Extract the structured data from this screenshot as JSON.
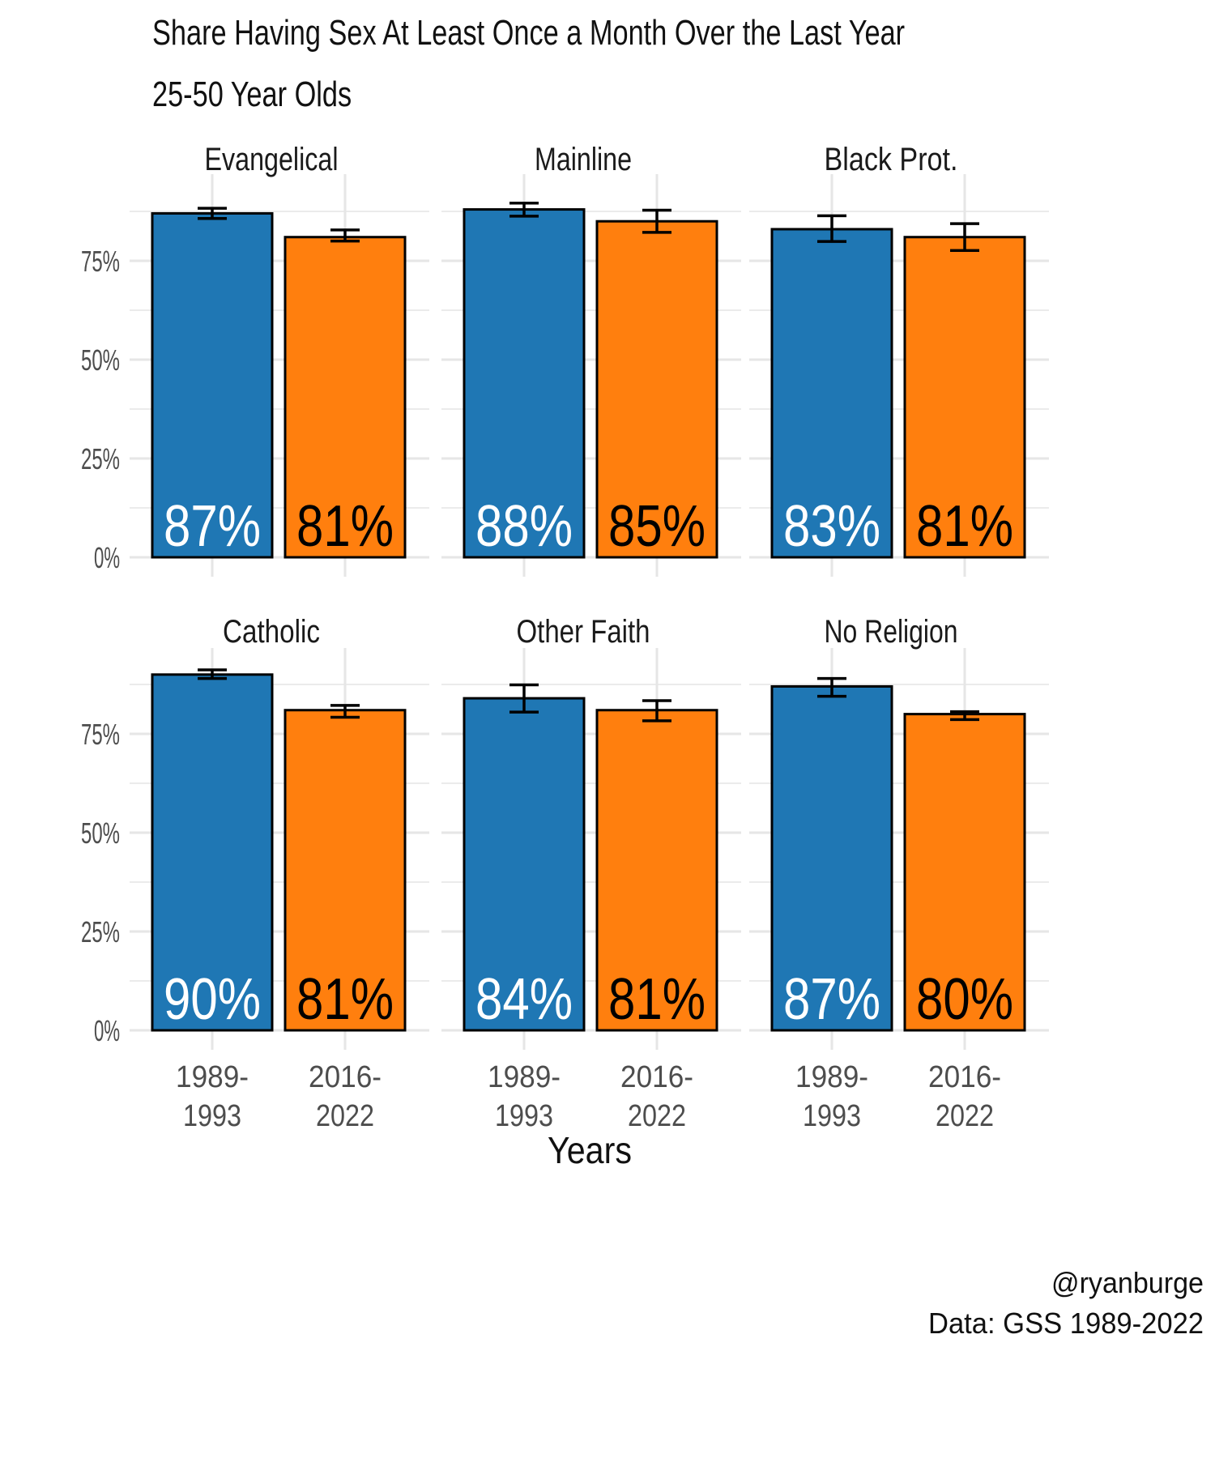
{
  "chart_data": {
    "type": "bar",
    "title": "Share Having Sex At Least Once a Month Over the Last Year",
    "subtitle": "25-50 Year Olds",
    "xlabel": "Years",
    "ylabel": "",
    "ylim": [
      0,
      100
    ],
    "yticks": [
      0,
      25,
      50,
      75
    ],
    "ytick_labels": [
      "0%",
      "25%",
      "50%",
      "75%"
    ],
    "categories": [
      "1989-\n1993",
      "2016-\n2022"
    ],
    "category_lines": [
      [
        "1989-",
        "1993"
      ],
      [
        "2016-",
        "2022"
      ]
    ],
    "colors": [
      "#1f77b4",
      "#ff7f0e"
    ],
    "label_colors": [
      "#ffffff",
      "#000000"
    ],
    "grid": true,
    "legend": "none",
    "caption": [
      "@ryanburge",
      "Data: GSS 1989-2022"
    ],
    "panels": [
      {
        "name": "Evangelical",
        "values": [
          87,
          81
        ],
        "labels": [
          "87%",
          "81%"
        ],
        "ci": [
          [
            85.7,
            88.3
          ],
          [
            80.0,
            82.8
          ]
        ]
      },
      {
        "name": "Mainline",
        "values": [
          88,
          85
        ],
        "labels": [
          "88%",
          "85%"
        ],
        "ci": [
          [
            86.3,
            89.6
          ],
          [
            82.2,
            87.8
          ]
        ]
      },
      {
        "name": "Black Prot.",
        "values": [
          83,
          81
        ],
        "labels": [
          "83%",
          "81%"
        ],
        "ci": [
          [
            79.9,
            86.4
          ],
          [
            77.6,
            84.4
          ]
        ]
      },
      {
        "name": "Catholic",
        "values": [
          90,
          81
        ],
        "labels": [
          "90%",
          "81%"
        ],
        "ci": [
          [
            89.0,
            91.2
          ],
          [
            79.2,
            82.2
          ]
        ]
      },
      {
        "name": "Other Faith",
        "values": [
          84,
          81
        ],
        "labels": [
          "84%",
          "81%"
        ],
        "ci": [
          [
            80.5,
            87.4
          ],
          [
            78.3,
            83.4
          ]
        ]
      },
      {
        "name": "No Religion",
        "values": [
          87,
          80
        ],
        "labels": [
          "87%",
          "80%"
        ],
        "ci": [
          [
            84.5,
            89.0
          ],
          [
            78.6,
            80.6
          ]
        ]
      }
    ]
  }
}
